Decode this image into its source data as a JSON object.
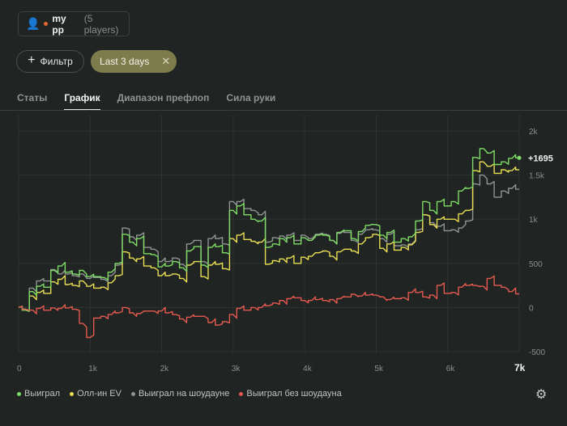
{
  "header": {
    "player_name": "my pp",
    "players_count": "(5 players)",
    "user_icon": "user-group-icon"
  },
  "filters": {
    "add_label": "Фильтр",
    "active_chip": "Last 3 days"
  },
  "tabs": [
    {
      "label": "Статы",
      "active": false
    },
    {
      "label": "График",
      "active": true
    },
    {
      "label": "Диапазон префлоп",
      "active": false
    },
    {
      "label": "Сила руки",
      "active": false
    }
  ],
  "chart_data": {
    "type": "line",
    "xlabel": "",
    "ylabel": "",
    "xlim": [
      0,
      7000
    ],
    "ylim": [
      -500,
      2000
    ],
    "x_ticks": [
      "0",
      "1k",
      "2k",
      "3k",
      "4k",
      "5k",
      "6k",
      "7k"
    ],
    "y_ticks": [
      "2k",
      "1.5k",
      "1k",
      "500",
      "0",
      "-500"
    ],
    "end_label": "+1695",
    "grid": true,
    "legend_position": "bottom-left",
    "x": [
      0,
      100,
      200,
      300,
      400,
      500,
      600,
      700,
      800,
      900,
      1000,
      1100,
      1200,
      1300,
      1400,
      1500,
      1600,
      1700,
      1800,
      1900,
      2000,
      2100,
      2200,
      2300,
      2400,
      2500,
      2600,
      2700,
      2800,
      2900,
      3000,
      3100,
      3200,
      3300,
      3400,
      3500,
      3600,
      3700,
      3800,
      3900,
      4000,
      4100,
      4200,
      4300,
      4400,
      4500,
      4600,
      4700,
      4800,
      4900,
      5000,
      5100,
      5200,
      5300,
      5400,
      5500,
      5600,
      5700,
      5800,
      5900,
      6000,
      6100,
      6200,
      6300,
      6400,
      6500,
      6600,
      6700,
      6800,
      6900,
      7000
    ],
    "series": [
      {
        "name": "Выиграл",
        "color": "#7ddb63",
        "values": [
          0,
          -30,
          180,
          240,
          230,
          420,
          470,
          400,
          380,
          420,
          350,
          350,
          340,
          400,
          500,
          830,
          740,
          780,
          610,
          600,
          460,
          470,
          520,
          450,
          640,
          690,
          480,
          680,
          690,
          620,
          1100,
          1150,
          1050,
          1000,
          980,
          680,
          720,
          780,
          790,
          720,
          790,
          760,
          820,
          820,
          760,
          850,
          870,
          780,
          860,
          930,
          940,
          820,
          850,
          740,
          780,
          800,
          980,
          1200,
          1100,
          1200,
          1150,
          1200,
          1320,
          1350,
          1700,
          1800,
          1750,
          1620,
          1650,
          1690,
          1695
        ]
      },
      {
        "name": "Олл-ин EV",
        "color": "#e9dd52",
        "values": [
          0,
          -20,
          130,
          170,
          160,
          290,
          320,
          260,
          250,
          300,
          240,
          220,
          230,
          280,
          360,
          630,
          560,
          550,
          470,
          450,
          360,
          360,
          380,
          330,
          480,
          520,
          350,
          480,
          490,
          440,
          780,
          820,
          770,
          750,
          740,
          490,
          530,
          550,
          560,
          500,
          570,
          580,
          620,
          640,
          580,
          630,
          660,
          640,
          720,
          790,
          830,
          670,
          720,
          650,
          680,
          710,
          850,
          1050,
          940,
          1000,
          1000,
          1000,
          1060,
          1100,
          1550,
          1650,
          1600,
          1520,
          1560,
          1550,
          1560
        ]
      },
      {
        "name": "Выиграл на шоудауне",
        "color": "#8f9392",
        "values": [
          0,
          -20,
          220,
          300,
          300,
          430,
          380,
          380,
          360,
          380,
          330,
          340,
          320,
          360,
          480,
          900,
          800,
          820,
          680,
          660,
          520,
          520,
          560,
          490,
          720,
          760,
          520,
          780,
          780,
          720,
          1200,
          1200,
          1120,
          1100,
          1050,
          740,
          790,
          810,
          820,
          760,
          820,
          780,
          830,
          830,
          760,
          840,
          850,
          760,
          830,
          880,
          880,
          780,
          830,
          700,
          710,
          720,
          880,
          1050,
          960,
          920,
          870,
          880,
          900,
          980,
          1400,
          1500,
          1400,
          1250,
          1320,
          1350,
          1340
        ]
      },
      {
        "name": "Выиграл без шоудауна",
        "color": "#e4594f",
        "values": [
          0,
          -20,
          -30,
          -10,
          -30,
          -5,
          -10,
          -5,
          -20,
          -180,
          -340,
          -120,
          -100,
          -80,
          -60,
          0,
          -60,
          -70,
          -40,
          -40,
          -40,
          -60,
          -80,
          -130,
          -110,
          -100,
          -100,
          -170,
          -200,
          -160,
          -80,
          -10,
          -30,
          0,
          0,
          20,
          50,
          80,
          100,
          110,
          80,
          80,
          90,
          80,
          90,
          100,
          120,
          150,
          130,
          140,
          140,
          120,
          90,
          100,
          110,
          170,
          170,
          120,
          140,
          250,
          160,
          170,
          230,
          250,
          250,
          240,
          330,
          250,
          230,
          180,
          155
        ]
      }
    ]
  }
}
